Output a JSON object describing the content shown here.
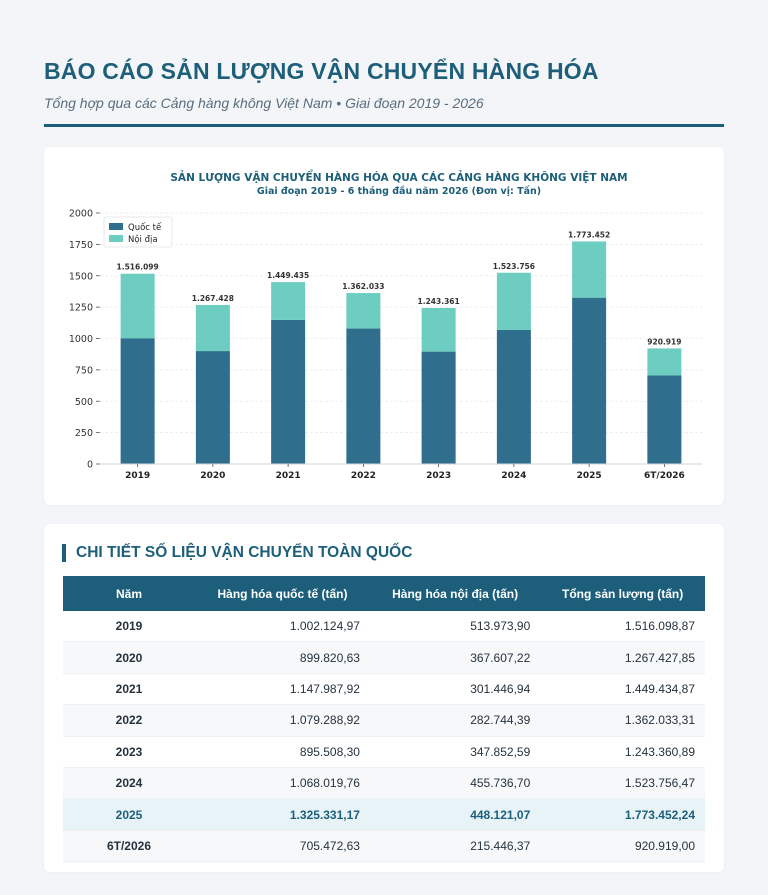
{
  "header": {
    "title": "BÁO CÁO SẢN LƯỢNG VẬN CHUYỂN HÀNG HÓA",
    "subtitle": "Tổng hợp qua các Cảng hàng không Việt Nam • Giai đoạn 2019 - 2026"
  },
  "colors": {
    "accent": "#1d5f7a",
    "international": "#2f6e8c",
    "domestic": "#6ccdc0",
    "highlight_row": "#e8f3f8"
  },
  "chart_data": {
    "type": "bar",
    "stacked": true,
    "title": "SẢN LƯỢNG VẬN CHUYỂN HÀNG HÓA QUA CÁC CẢNG HÀNG KHÔNG VIỆT NAM",
    "subtitle": "Giai đoạn 2019 - 6 tháng đầu năm 2026 (Đơn vị: Tấn)",
    "xlabel": "",
    "ylabel": "",
    "categories": [
      "2019",
      "2020",
      "2021",
      "2022",
      "2023",
      "2024",
      "2025",
      "6T/2026"
    ],
    "series": [
      {
        "name": "Quốc tế",
        "color": "#2f6e8c",
        "values": [
          1002.12,
          899.82,
          1147.99,
          1079.29,
          895.51,
          1068.02,
          1325.33,
          705.47
        ]
      },
      {
        "name": "Nội địa",
        "color": "#6ccdc0",
        "values": [
          513.97,
          367.61,
          301.45,
          282.74,
          347.85,
          455.74,
          448.12,
          215.45
        ]
      }
    ],
    "data_labels": [
      "1.516.099",
      "1.267.428",
      "1.449.435",
      "1.362.033",
      "1.243.361",
      "1.523.756",
      "1.773.452",
      "920.919"
    ],
    "yticks": [
      "0",
      "250",
      "500",
      "750",
      "1000",
      "1250",
      "1500",
      "1750",
      "2000"
    ],
    "ylim": [
      0,
      2000
    ],
    "grid": true,
    "legend_position": "top-left"
  },
  "table": {
    "title": "CHI TIẾT SỐ LIỆU VẬN CHUYỂN TOÀN QUỐC",
    "headers": [
      "Năm",
      "Hàng hóa quốc tế (tấn)",
      "Hàng hóa nội địa (tấn)",
      "Tổng sản lượng (tấn)"
    ],
    "rows": [
      [
        "2019",
        "1.002.124,97",
        "513.973,90",
        "1.516.098,87"
      ],
      [
        "2020",
        "899.820,63",
        "367.607,22",
        "1.267.427,85"
      ],
      [
        "2021",
        "1.147.987,92",
        "301.446,94",
        "1.449.434,87"
      ],
      [
        "2022",
        "1.079.288,92",
        "282.744,39",
        "1.362.033,31"
      ],
      [
        "2023",
        "895.508,30",
        "347.852,59",
        "1.243.360,89"
      ],
      [
        "2024",
        "1.068.019,76",
        "455.736,70",
        "1.523.756,47"
      ],
      [
        "2025",
        "1.325.331,17",
        "448.121,07",
        "1.773.452,24"
      ],
      [
        "6T/2026",
        "705.472,63",
        "215.446,37",
        "920.919,00"
      ]
    ],
    "highlight_row": "2025"
  }
}
